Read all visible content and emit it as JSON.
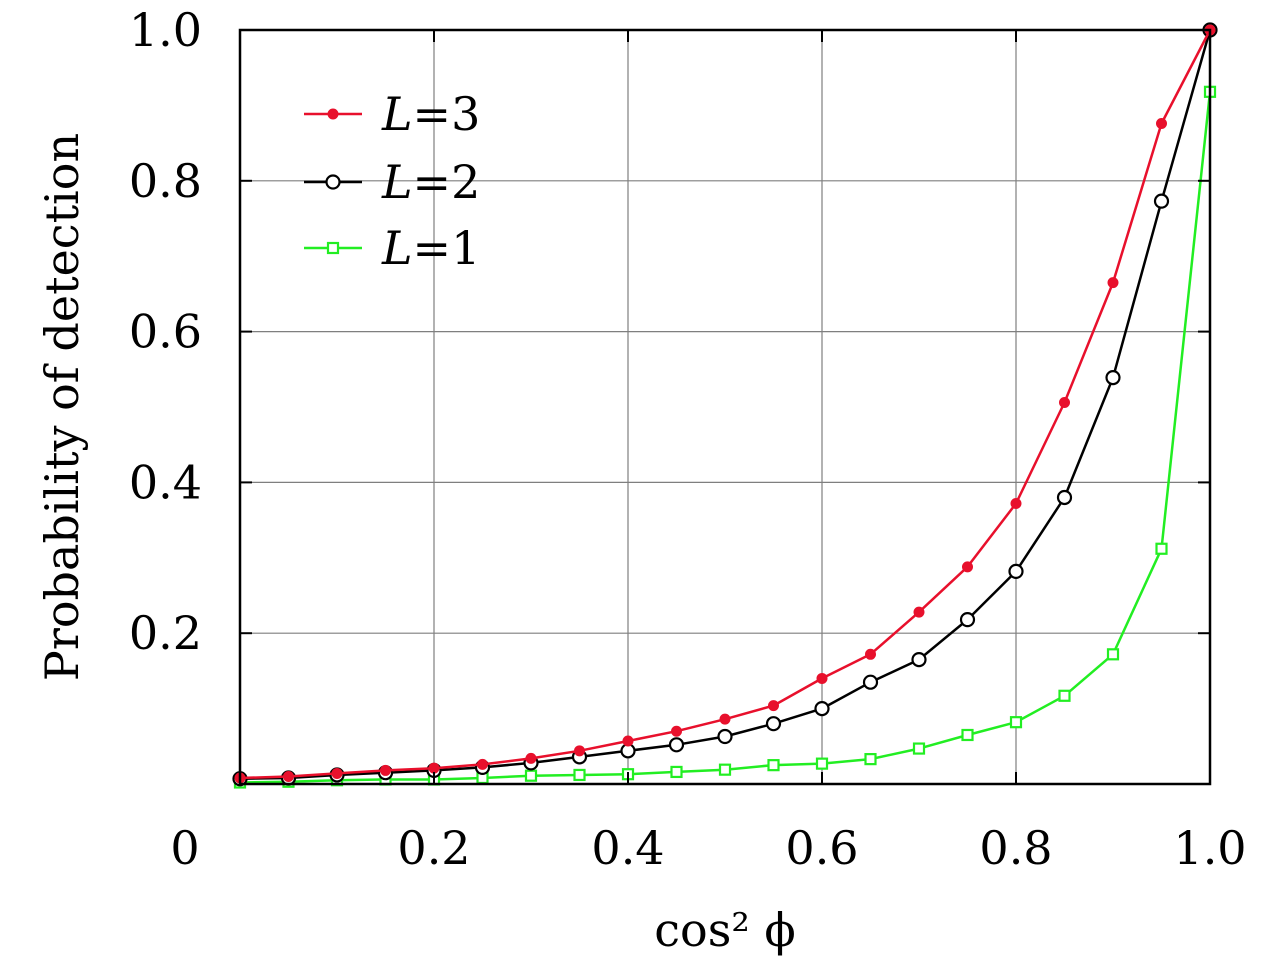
{
  "chart_data": {
    "type": "line",
    "xlabel": "cos² ϕ",
    "ylabel": "Probability of detection",
    "xlim": [
      0,
      1.0
    ],
    "ylim": [
      0,
      1.0
    ],
    "grid": true,
    "legend_position": "top-left",
    "x_ticks": [
      {
        "value": 0,
        "label": "0"
      },
      {
        "value": 0.2,
        "label": "0.2"
      },
      {
        "value": 0.4,
        "label": "0.4"
      },
      {
        "value": 0.6,
        "label": "0.6"
      },
      {
        "value": 0.8,
        "label": "0.8"
      },
      {
        "value": 1.0,
        "label": "1.0"
      }
    ],
    "y_ticks": [
      {
        "value": 0.2,
        "label": "0.2"
      },
      {
        "value": 0.4,
        "label": "0.4"
      },
      {
        "value": 0.6,
        "label": "0.6"
      },
      {
        "value": 0.8,
        "label": "0.8"
      },
      {
        "value": 1.0,
        "label": "1.0"
      }
    ],
    "series": [
      {
        "name": "L=3",
        "legend_var": "L",
        "legend_rest": "=3",
        "color": "#e8102c",
        "marker": "filled-circle",
        "x": [
          0,
          0.05,
          0.1,
          0.15,
          0.2,
          0.25,
          0.3,
          0.35,
          0.4,
          0.45,
          0.5,
          0.55,
          0.6,
          0.65,
          0.7,
          0.75,
          0.8,
          0.85,
          0.9,
          0.95,
          1.0
        ],
        "values": [
          0.008,
          0.01,
          0.014,
          0.018,
          0.021,
          0.026,
          0.034,
          0.044,
          0.057,
          0.07,
          0.086,
          0.104,
          0.14,
          0.172,
          0.228,
          0.288,
          0.372,
          0.506,
          0.665,
          0.876,
          1.0
        ]
      },
      {
        "name": "L=2",
        "legend_var": "L",
        "legend_rest": "=2",
        "color": "#000000",
        "marker": "open-circle",
        "x": [
          0,
          0.05,
          0.1,
          0.15,
          0.2,
          0.25,
          0.3,
          0.35,
          0.4,
          0.45,
          0.5,
          0.55,
          0.6,
          0.65,
          0.7,
          0.75,
          0.8,
          0.85,
          0.9,
          0.95,
          1.0
        ],
        "values": [
          0.007,
          0.008,
          0.012,
          0.015,
          0.018,
          0.022,
          0.028,
          0.036,
          0.044,
          0.052,
          0.063,
          0.08,
          0.1,
          0.135,
          0.165,
          0.218,
          0.282,
          0.38,
          0.539,
          0.773,
          1.0
        ]
      },
      {
        "name": "L=1",
        "legend_var": "L",
        "legend_rest": "=1",
        "color": "#22ee22",
        "marker": "open-square",
        "x": [
          0,
          0.05,
          0.1,
          0.15,
          0.2,
          0.25,
          0.3,
          0.35,
          0.4,
          0.45,
          0.5,
          0.55,
          0.6,
          0.65,
          0.7,
          0.75,
          0.8,
          0.85,
          0.9,
          0.95,
          1.0
        ],
        "values": [
          0.002,
          0.003,
          0.005,
          0.006,
          0.006,
          0.008,
          0.011,
          0.012,
          0.013,
          0.016,
          0.019,
          0.025,
          0.027,
          0.033,
          0.047,
          0.065,
          0.082,
          0.117,
          0.172,
          0.312,
          0.918
        ]
      }
    ]
  }
}
